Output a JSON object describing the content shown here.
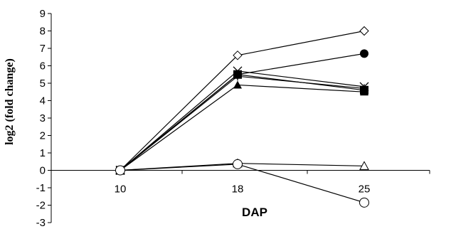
{
  "chart_data": {
    "type": "line",
    "title": "",
    "xlabel": "DAP",
    "ylabel": "log2  (fold change)",
    "categories": [
      "10",
      "18",
      "25"
    ],
    "ylim": [
      -3,
      9
    ],
    "yticks": [
      "9",
      "8",
      "7",
      "6",
      "5",
      "4",
      "3",
      "2",
      "1",
      "0",
      "-1",
      "-2",
      "-3"
    ],
    "grid": false,
    "legend": "none",
    "series": [
      {
        "marker": "diamond-open",
        "values": [
          0,
          6.6,
          8.0
        ]
      },
      {
        "marker": "circle-filled",
        "values": [
          0,
          5.5,
          6.7
        ]
      },
      {
        "marker": "x",
        "values": [
          0,
          5.7,
          4.8
        ]
      },
      {
        "marker": "plus",
        "values": [
          0,
          5.4,
          4.7
        ]
      },
      {
        "marker": "square-filled",
        "values": [
          0,
          5.5,
          4.6
        ]
      },
      {
        "marker": "triangle-filled",
        "values": [
          0,
          4.9,
          4.5
        ]
      },
      {
        "marker": "triangle-open",
        "values": [
          0,
          0.4,
          0.25
        ]
      },
      {
        "marker": "circle-open",
        "values": [
          0,
          0.35,
          -1.85
        ]
      }
    ]
  }
}
